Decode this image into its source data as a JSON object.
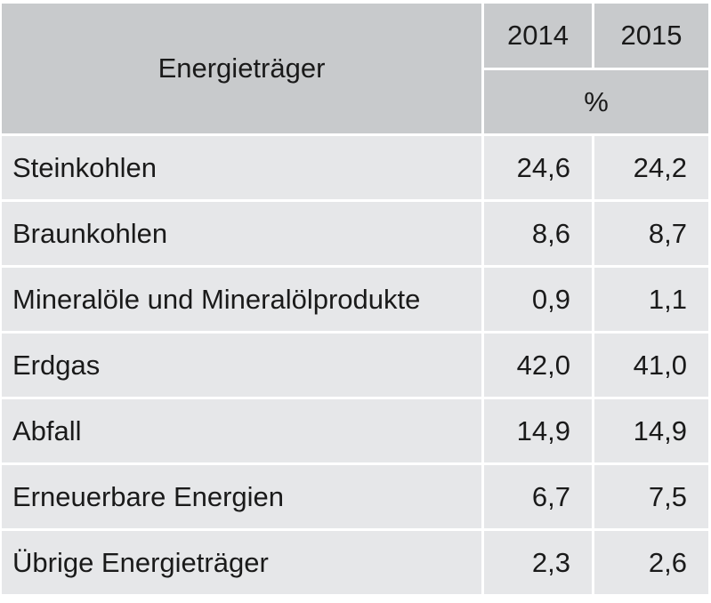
{
  "header": {
    "label": "Energieträger",
    "years": [
      "2014",
      "2015"
    ],
    "unit": "%"
  },
  "rows": [
    {
      "label": "Steinkohlen",
      "values": [
        "24,6",
        "24,2"
      ]
    },
    {
      "label": "Braunkohlen",
      "values": [
        "8,6",
        "8,7"
      ]
    },
    {
      "label": "Mineralöle und Mineralölprodukte",
      "values": [
        "0,9",
        "1,1"
      ]
    },
    {
      "label": "Erdgas",
      "values": [
        "42,0",
        "41,0"
      ]
    },
    {
      "label": "Abfall",
      "values": [
        "14,9",
        "14,9"
      ]
    },
    {
      "label": "Erneuerbare Energien",
      "values": [
        "6,7",
        "7,5"
      ]
    },
    {
      "label": "Übrige Energieträger",
      "values": [
        "2,3",
        "2,6"
      ]
    }
  ],
  "colors": {
    "header_bg": "#c8cacc",
    "row_bg": "#e6e7e9",
    "separator": "#ffffff",
    "text": "#1a1a1a"
  }
}
